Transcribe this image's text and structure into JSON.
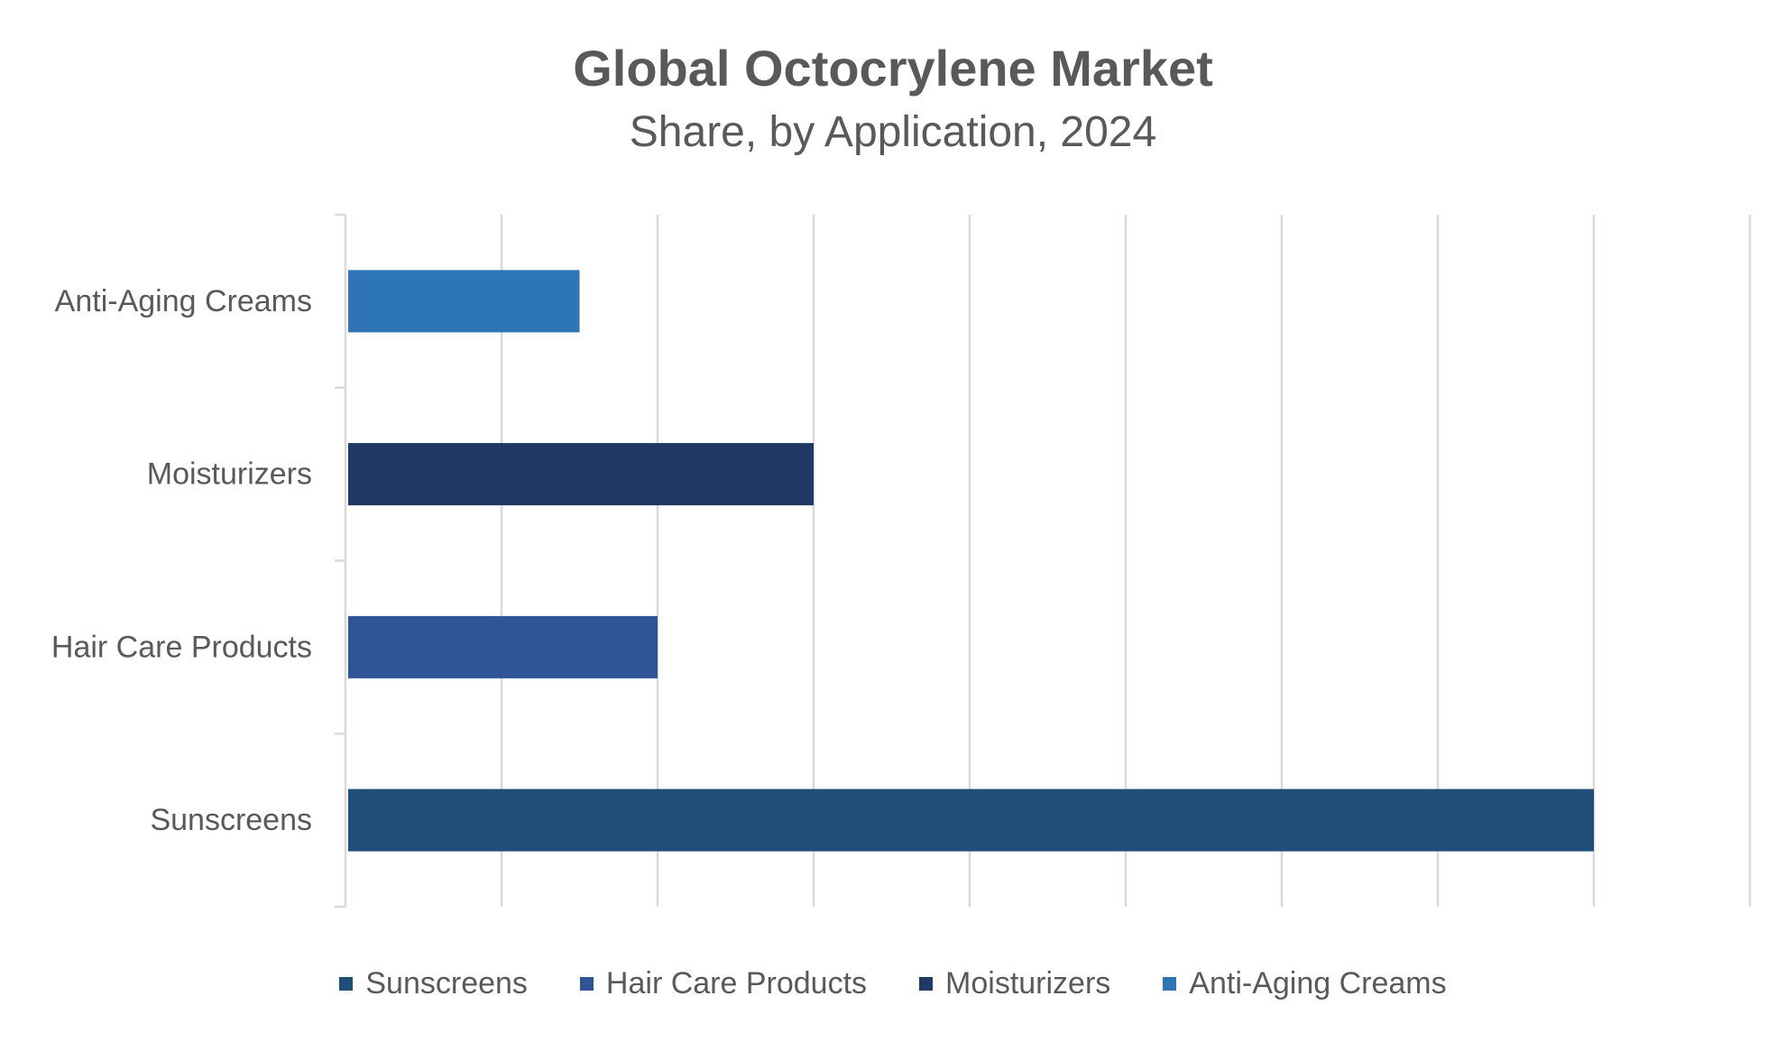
{
  "chart_data": {
    "type": "bar",
    "orientation": "horizontal",
    "title": "Global Octocrylene Market",
    "subtitle": "Share, by Application, 2024",
    "categories": [
      "Sunscreens",
      "Hair Care Products",
      "Moisturizers",
      "Anti-Aging Creams"
    ],
    "values": [
      80,
      20,
      30,
      15
    ],
    "colors": [
      "#1f4e79",
      "#2f5597",
      "#203864",
      "#2e75b6"
    ],
    "xlim": [
      0,
      90
    ],
    "x_gridline_step": 10,
    "grid": true,
    "x_tick_labels_visible": false,
    "legend": {
      "position": "bottom",
      "entries": [
        "Sunscreens",
        "Hair Care Products",
        "Moisturizers",
        "Anti-Aging Creams"
      ]
    }
  }
}
